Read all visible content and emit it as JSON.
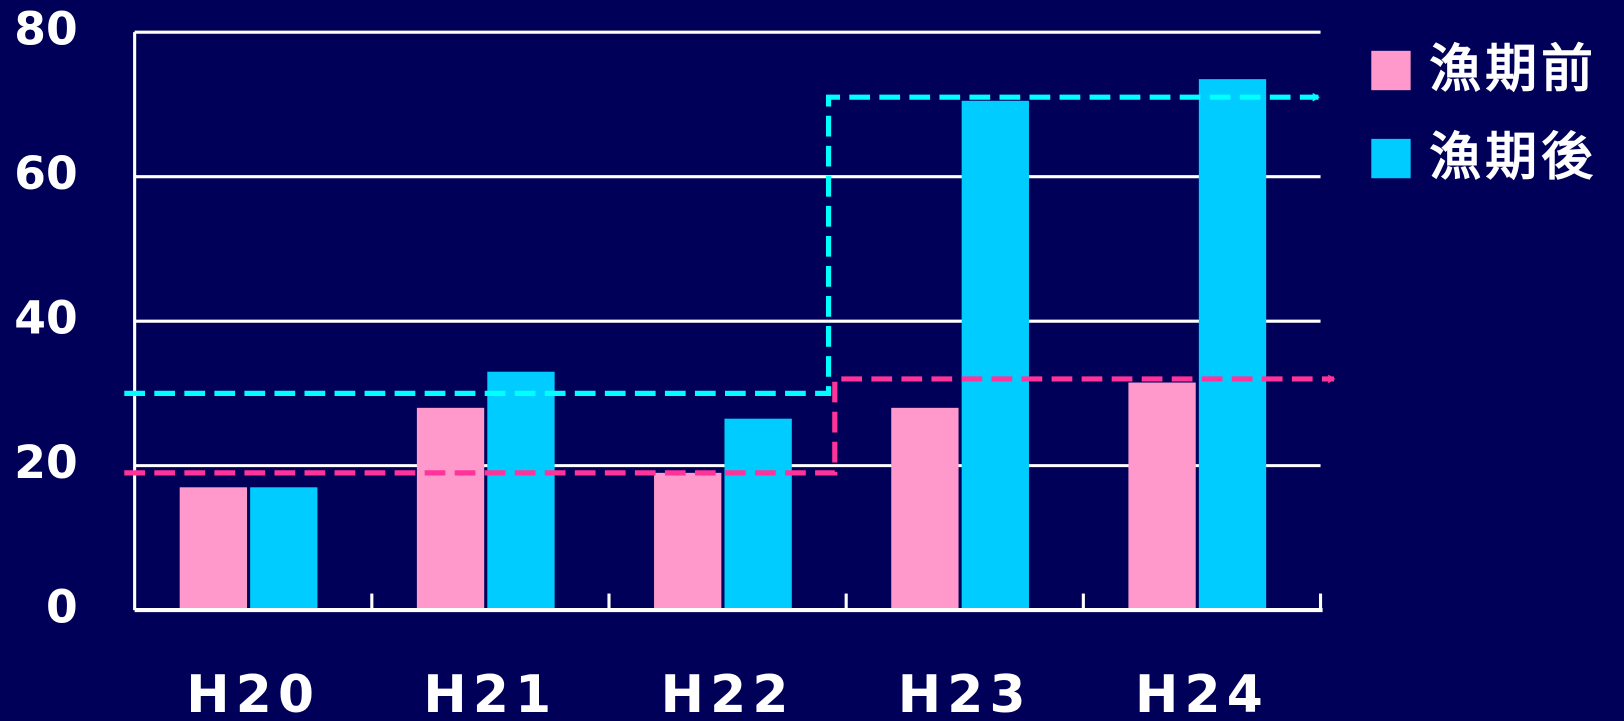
{
  "chart_data": {
    "type": "bar",
    "categories": [
      "H20",
      "H21",
      "H22",
      "H23",
      "H24"
    ],
    "series": [
      {
        "name": "漁期前",
        "color": "#ff99cc",
        "values": [
          17,
          28,
          19,
          28,
          31.5
        ]
      },
      {
        "name": "漁期後",
        "color": "#00ccff",
        "values": [
          17,
          33,
          26.5,
          70.5,
          73.5
        ]
      }
    ],
    "ylim": [
      0,
      80
    ],
    "yticks": [
      0,
      20,
      40,
      60,
      80
    ],
    "grid": true,
    "legend": "right",
    "step_lines": [
      {
        "color": "#00ffff",
        "levels": [
          30,
          71
        ]
      },
      {
        "color": "#ff3399",
        "levels": [
          19,
          32
        ]
      }
    ]
  }
}
